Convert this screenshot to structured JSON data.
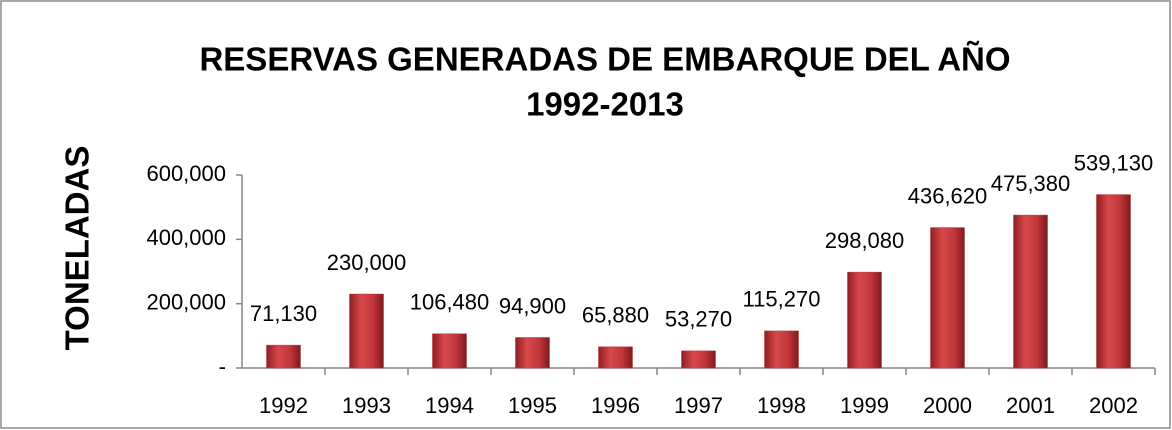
{
  "chart_data": {
    "type": "bar",
    "title": [
      "RESERVAS GENERADAS DE EMBARQUE DEL AÑO",
      "1992-2013"
    ],
    "y_label": "TONELADAS",
    "categories": [
      "1992",
      "1993",
      "1994",
      "1995",
      "1996",
      "1997",
      "1998",
      "1999",
      "2000",
      "2001",
      "2002"
    ],
    "values": [
      71130,
      230000,
      106480,
      94900,
      65880,
      53270,
      115270,
      298080,
      436620,
      475380,
      539130
    ],
    "value_labels": [
      "71,130",
      "230,000",
      "106,480",
      "94,900",
      "65,880",
      "53,270",
      "115,270",
      "298,080",
      "436,620",
      "475,380",
      "539,130"
    ],
    "color": "#c0363a",
    "ylim": [
      0,
      600000
    ],
    "yticks": [
      {
        "value": 0,
        "label": "-"
      },
      {
        "value": 200000,
        "label": "200,000"
      },
      {
        "value": 400000,
        "label": "400,000"
      },
      {
        "value": 600000,
        "label": "600,000"
      }
    ]
  }
}
